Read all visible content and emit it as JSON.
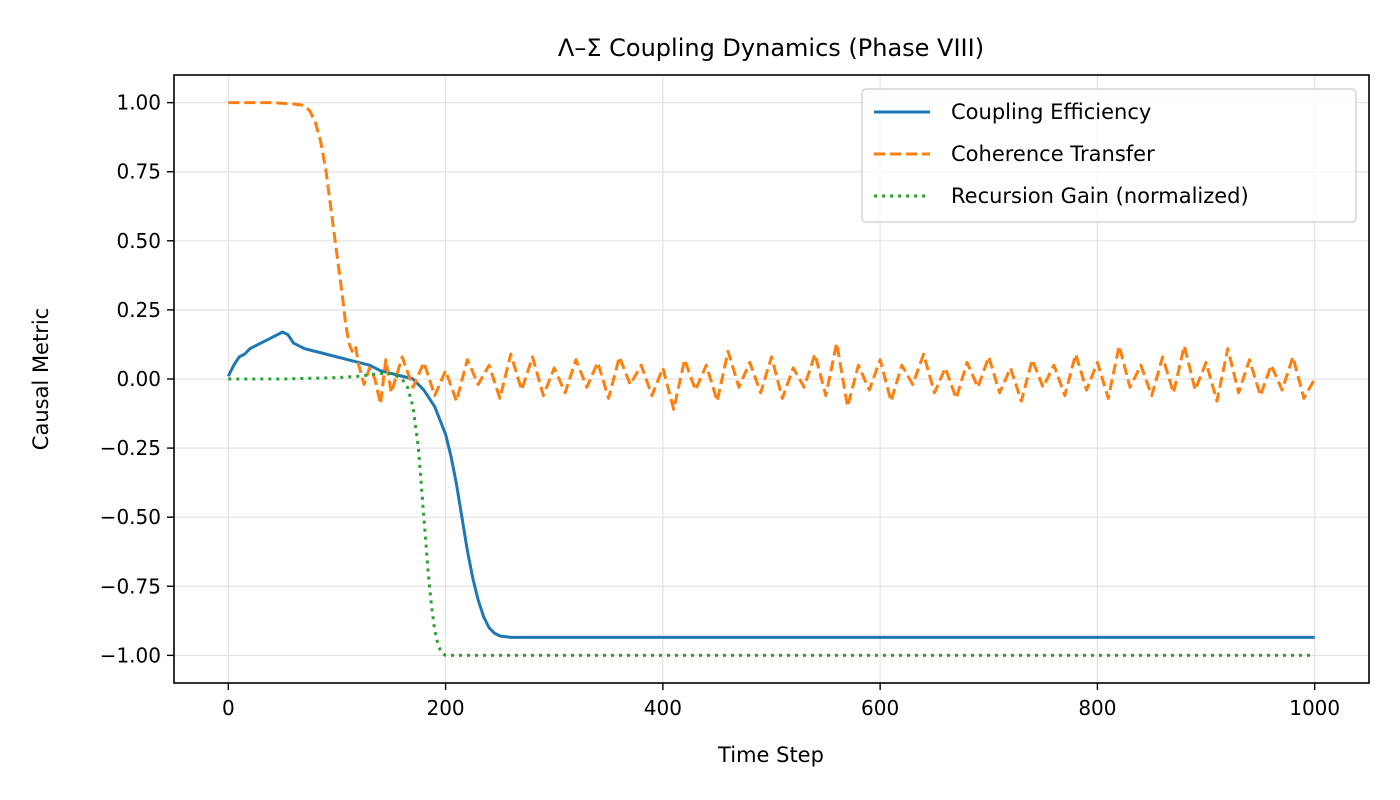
{
  "chart_data": {
    "type": "line",
    "title": "Λ–Σ Coupling Dynamics (Phase VIII)",
    "xlabel": "Time Step",
    "ylabel": "Causal Metric",
    "xlim": [
      -50,
      1050
    ],
    "ylim": [
      -1.1,
      1.1
    ],
    "xticks": [
      0,
      200,
      400,
      600,
      800,
      1000
    ],
    "xtick_labels": [
      "0",
      "200",
      "400",
      "600",
      "800",
      "1000"
    ],
    "yticks": [
      1.0,
      0.75,
      0.5,
      0.25,
      0.0,
      -0.25,
      -0.5,
      -0.75,
      -1.0
    ],
    "ytick_labels": [
      "1.00",
      "0.75",
      "0.50",
      "0.25",
      "0.00",
      "−0.25",
      "−0.50",
      "−0.75",
      "−1.00"
    ],
    "grid": true,
    "legend_position": "top-right",
    "series": [
      {
        "name": "Coupling Efficiency",
        "color": "#1f77b4",
        "style": "solid",
        "x": [
          0,
          5,
          10,
          15,
          20,
          30,
          40,
          50,
          55,
          60,
          70,
          80,
          90,
          100,
          110,
          120,
          130,
          140,
          150,
          160,
          170,
          180,
          190,
          200,
          205,
          210,
          215,
          220,
          225,
          230,
          235,
          240,
          245,
          250,
          260,
          270,
          300,
          400,
          500,
          600,
          700,
          800,
          900,
          1000
        ],
        "y": [
          0.01,
          0.05,
          0.08,
          0.09,
          0.11,
          0.13,
          0.15,
          0.17,
          0.16,
          0.13,
          0.11,
          0.1,
          0.09,
          0.08,
          0.07,
          0.06,
          0.05,
          0.03,
          0.02,
          0.01,
          0.0,
          -0.04,
          -0.1,
          -0.2,
          -0.28,
          -0.38,
          -0.5,
          -0.62,
          -0.72,
          -0.8,
          -0.86,
          -0.9,
          -0.92,
          -0.93,
          -0.935,
          -0.935,
          -0.935,
          -0.935,
          -0.935,
          -0.935,
          -0.935,
          -0.935,
          -0.935,
          -0.935
        ]
      },
      {
        "name": "Coherence Transfer",
        "color": "#ff7f0e",
        "style": "dashed",
        "x": [
          0,
          20,
          40,
          60,
          70,
          75,
          80,
          85,
          90,
          95,
          100,
          105,
          108,
          111,
          114,
          117,
          120,
          125,
          130,
          135,
          140,
          145,
          150,
          160,
          170,
          180,
          190,
          200,
          210,
          220,
          230,
          240,
          250,
          260,
          270,
          280,
          290,
          300,
          310,
          320,
          330,
          340,
          350,
          360,
          370,
          380,
          390,
          400,
          410,
          420,
          430,
          440,
          450,
          460,
          470,
          480,
          490,
          500,
          510,
          520,
          530,
          540,
          550,
          560,
          570,
          580,
          590,
          600,
          610,
          620,
          630,
          640,
          650,
          660,
          670,
          680,
          690,
          700,
          710,
          720,
          730,
          740,
          750,
          760,
          770,
          780,
          790,
          800,
          810,
          820,
          830,
          840,
          850,
          860,
          870,
          880,
          890,
          900,
          910,
          920,
          930,
          940,
          950,
          960,
          970,
          980,
          990,
          1000
        ],
        "y": [
          1.0,
          1.0,
          1.0,
          0.995,
          0.99,
          0.97,
          0.93,
          0.86,
          0.75,
          0.6,
          0.45,
          0.3,
          0.2,
          0.13,
          0.1,
          0.12,
          0.05,
          -0.02,
          0.04,
          0.0,
          -0.09,
          0.07,
          -0.05,
          0.08,
          -0.03,
          0.06,
          -0.06,
          0.03,
          -0.08,
          0.07,
          -0.02,
          0.05,
          -0.07,
          0.09,
          -0.04,
          0.08,
          -0.06,
          0.04,
          -0.05,
          0.07,
          -0.03,
          0.06,
          -0.07,
          0.08,
          -0.02,
          0.05,
          -0.06,
          0.04,
          -0.11,
          0.07,
          -0.04,
          0.05,
          -0.08,
          0.1,
          -0.03,
          0.06,
          -0.05,
          0.08,
          -0.07,
          0.04,
          -0.03,
          0.09,
          -0.06,
          0.13,
          -0.1,
          0.05,
          -0.04,
          0.07,
          -0.08,
          0.05,
          -0.02,
          0.09,
          -0.05,
          0.04,
          -0.07,
          0.06,
          -0.03,
          0.08,
          -0.05,
          0.04,
          -0.08,
          0.07,
          -0.03,
          0.05,
          -0.06,
          0.09,
          -0.04,
          0.06,
          -0.07,
          0.12,
          -0.03,
          0.05,
          -0.06,
          0.08,
          -0.05,
          0.12,
          -0.04,
          0.06,
          -0.08,
          0.11,
          -0.05,
          0.07,
          -0.06,
          0.05,
          -0.04,
          0.08,
          -0.07,
          0.0
        ]
      },
      {
        "name": "Recursion Gain (normalized)",
        "color": "#2ca02c",
        "style": "dotted",
        "x": [
          0,
          50,
          100,
          120,
          140,
          150,
          160,
          165,
          170,
          175,
          178,
          181,
          184,
          187,
          190,
          193,
          196,
          200,
          210,
          300,
          400,
          500,
          600,
          700,
          800,
          900,
          1000
        ],
        "y": [
          0.0,
          0.0,
          0.005,
          0.01,
          0.02,
          0.02,
          0.0,
          -0.03,
          -0.1,
          -0.25,
          -0.4,
          -0.55,
          -0.7,
          -0.82,
          -0.91,
          -0.96,
          -0.99,
          -1.0,
          -1.0,
          -1.0,
          -1.0,
          -1.0,
          -1.0,
          -1.0,
          -1.0,
          -1.0,
          -1.0
        ]
      }
    ]
  }
}
